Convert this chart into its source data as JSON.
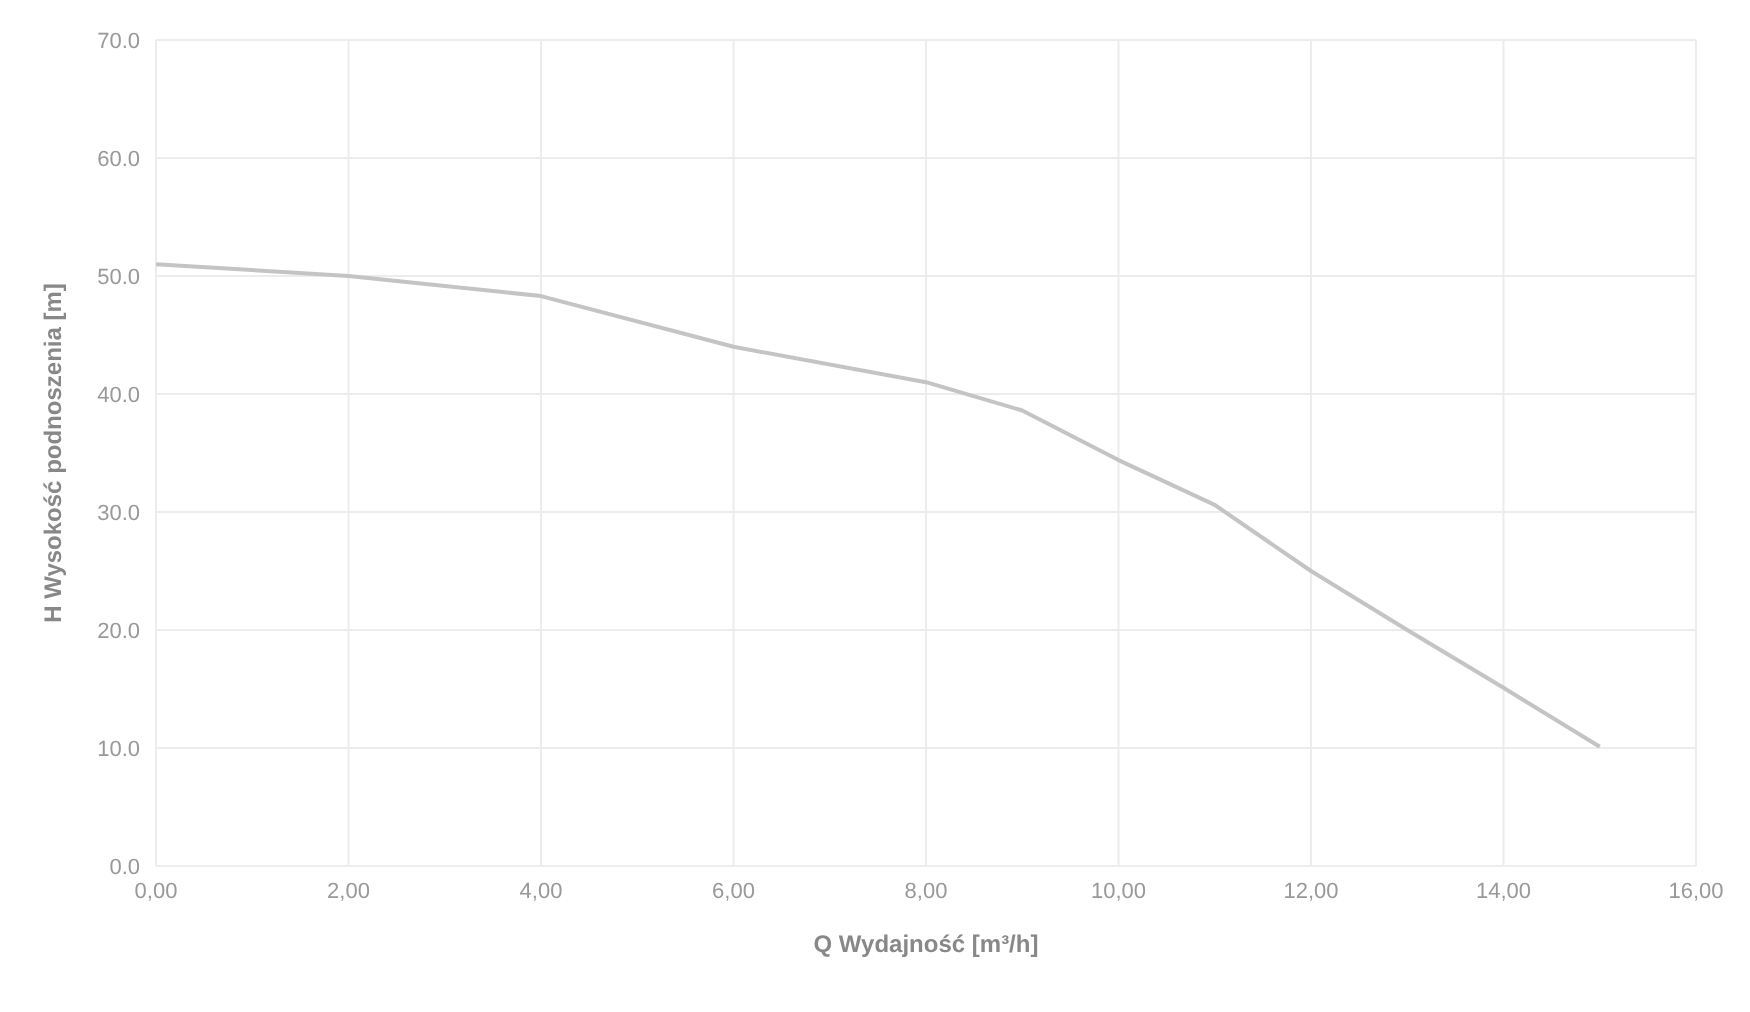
{
  "chart_data": {
    "type": "line",
    "xlabel": "Q Wydajność [m³/h]",
    "ylabel": "H Wysokość podnoszenia [m]",
    "x": [
      0,
      2,
      4,
      6,
      8,
      9,
      10,
      11,
      12,
      13,
      14,
      15
    ],
    "series": [
      {
        "color": "#c4c4c4",
        "values": [
          51,
          50,
          48.3,
          44,
          41,
          38.6,
          34.4,
          30.6,
          25,
          20,
          15.1,
          10.1
        ]
      }
    ],
    "xlim": [
      0,
      16
    ],
    "xticks": [
      {
        "value": 0,
        "label": "0,00"
      },
      {
        "value": 2,
        "label": "2,00"
      },
      {
        "value": 4,
        "label": "4,00"
      },
      {
        "value": 6,
        "label": "6,00"
      },
      {
        "value": 8,
        "label": "8,00"
      },
      {
        "value": 10,
        "label": "10,00"
      },
      {
        "value": 12,
        "label": "12,00"
      },
      {
        "value": 14,
        "label": "14,00"
      },
      {
        "value": 16,
        "label": "16,00"
      }
    ],
    "ylim": [
      0,
      70
    ],
    "yticks": [
      {
        "value": 0,
        "label": "0.0"
      },
      {
        "value": 10,
        "label": "10.0"
      },
      {
        "value": 20,
        "label": "20.0"
      },
      {
        "value": 30,
        "label": "30.0"
      },
      {
        "value": 40,
        "label": "40.0"
      },
      {
        "value": 50,
        "label": "50.0"
      },
      {
        "value": 60,
        "label": "60.0"
      },
      {
        "value": 70,
        "label": "70.0"
      }
    ],
    "grid": true,
    "marker": "none",
    "line_style": "solid"
  }
}
